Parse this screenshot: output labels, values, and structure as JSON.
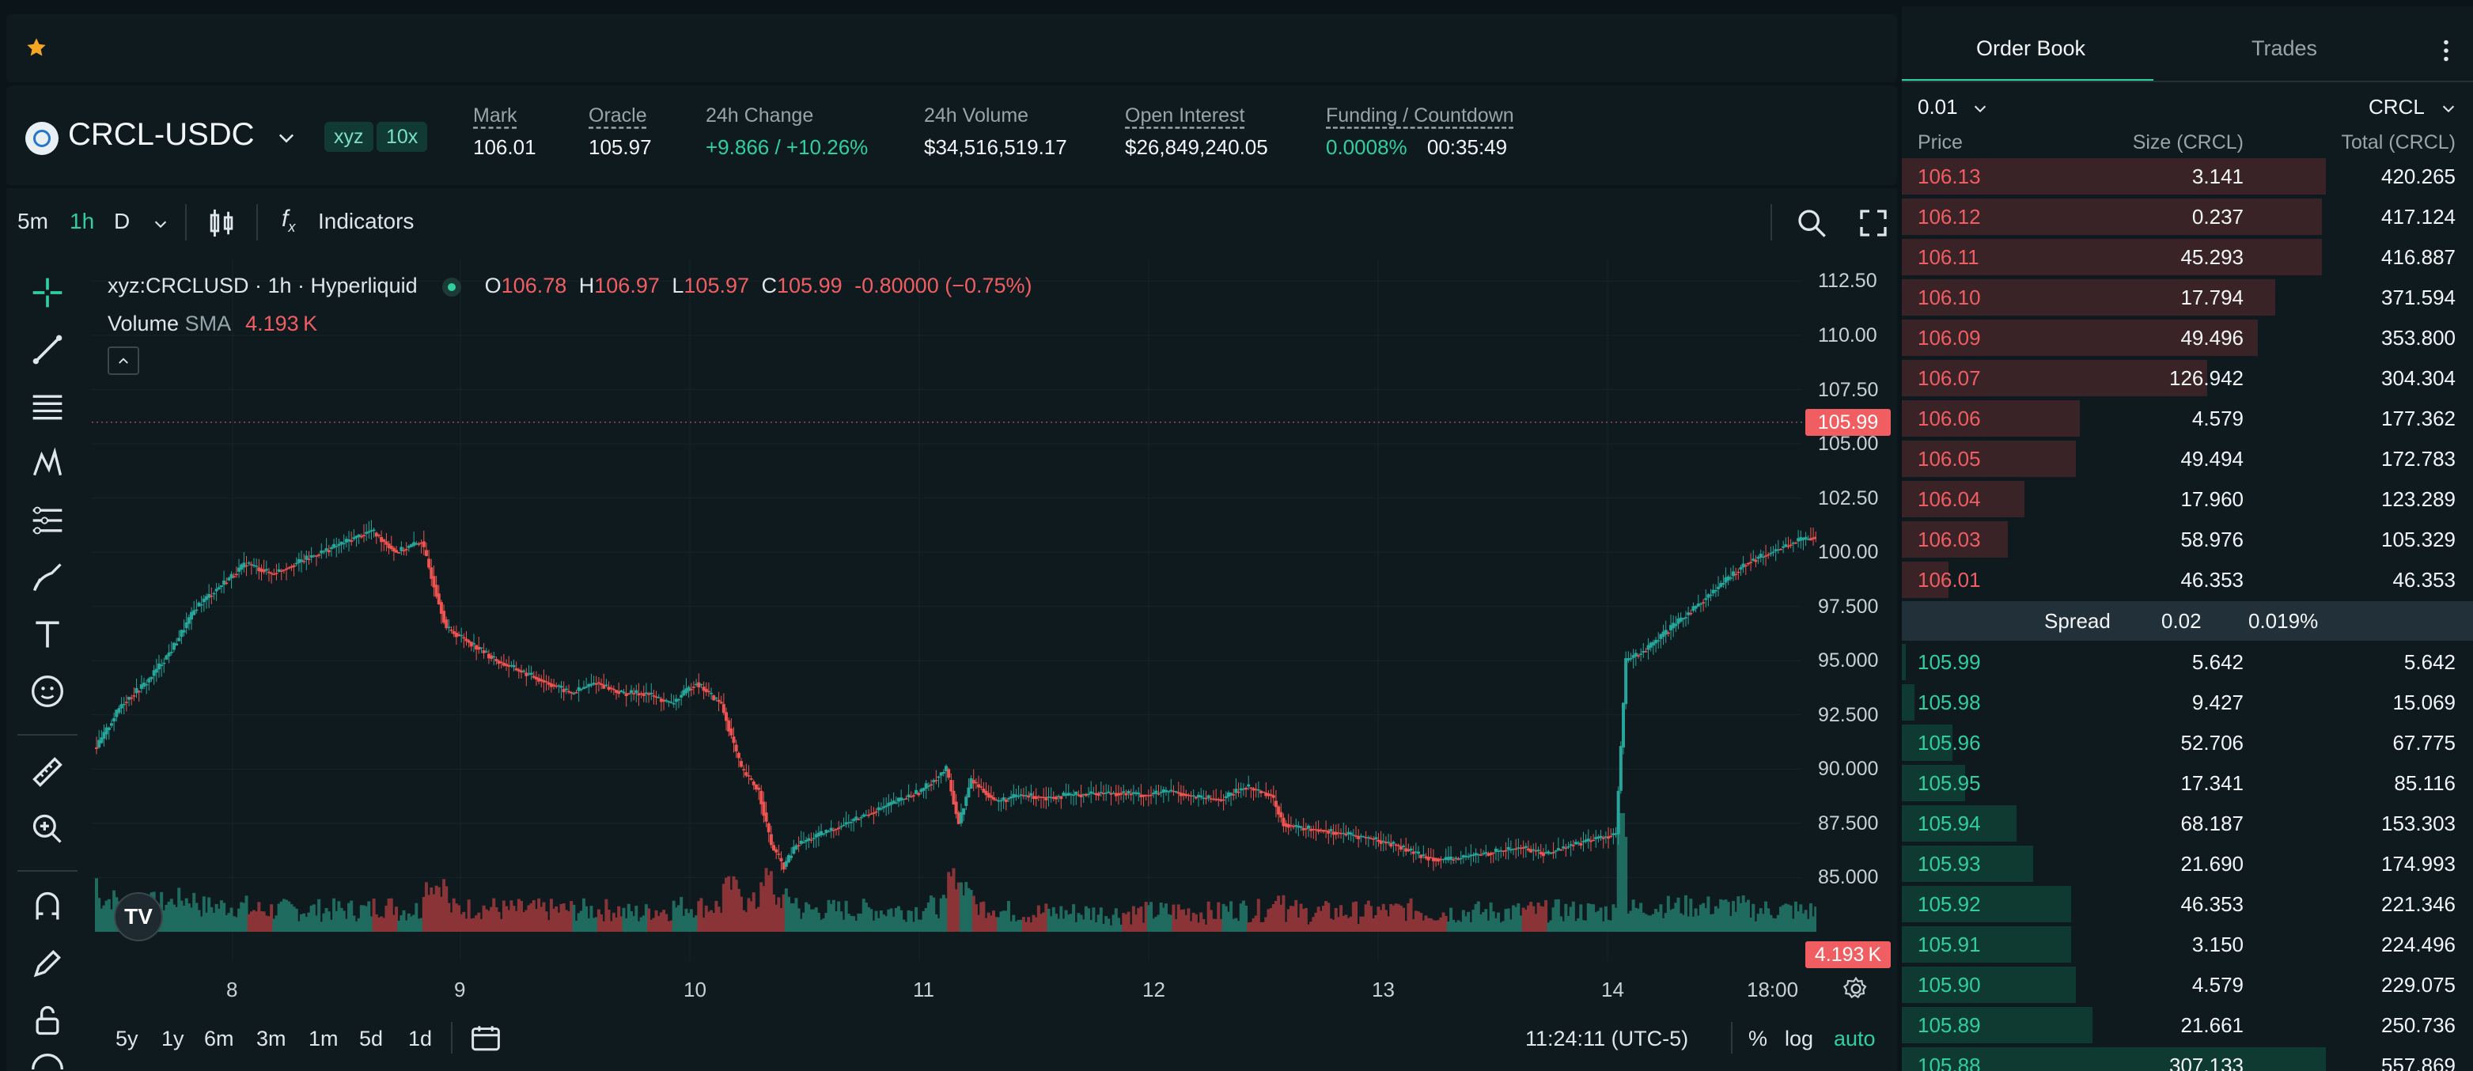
{
  "favorites": {
    "star_icon": "star-icon"
  },
  "header": {
    "pair": "CRCL-USDC",
    "dex_chip": "xyz",
    "leverage_chip": "10x",
    "stats": {
      "mark_label": "Mark",
      "mark_value": "106.01",
      "oracle_label": "Oracle",
      "oracle_value": "105.97",
      "change_label": "24h Change",
      "change_value": "+9.866 / +10.26%",
      "volume_label": "24h Volume",
      "volume_value": "$34,516,519.17",
      "oi_label": "Open Interest",
      "oi_value": "$26,849,240.05",
      "funding_label": "Funding / Countdown",
      "funding_value": "0.0008%",
      "countdown_value": "00:35:49"
    }
  },
  "toolbar": {
    "intervals": [
      "5m",
      "1h",
      "D"
    ],
    "active_interval": "1h",
    "indicators_label": "Indicators"
  },
  "legend": {
    "symbol": "xyz:CRCLUSD · 1h · Hyperliquid",
    "o_label": "O",
    "o_value": "106.78",
    "h_label": "H",
    "h_value": "106.97",
    "l_label": "L",
    "l_value": "105.97",
    "c_label": "C",
    "c_value": "105.99",
    "change": "-0.80000 (−0.75%)",
    "volume_label": "Volume",
    "sma_label": "SMA",
    "sma_value": "4.193 K"
  },
  "chart_data": {
    "type": "candlestick",
    "x_ticks": [
      "8",
      "9",
      "10",
      "11",
      "12",
      "13",
      "14",
      "18:00"
    ],
    "y_ticks": [
      "112.50",
      "110.00",
      "107.50",
      "105.00",
      "102.50",
      "100.00",
      "97.500",
      "95.000",
      "92.500",
      "90.000",
      "87.500",
      "85.000"
    ],
    "ylim": [
      82.5,
      113.5
    ],
    "last_price_label": "105.99",
    "last_volume_label": "4.193 K",
    "up_color": "#26a69a",
    "down_color": "#ef5350"
  },
  "bottom_bar": {
    "ranges": [
      "5y",
      "1y",
      "6m",
      "3m",
      "1m",
      "5d",
      "1d"
    ],
    "time": "11:24:11 (UTC-5)",
    "percent_label": "%",
    "log_label": "log",
    "auto_label": "auto"
  },
  "orderbook": {
    "tab_book": "Order Book",
    "tab_trades": "Trades",
    "tick_size": "0.01",
    "unit": "CRCL",
    "col_price": "Price",
    "col_size": "Size (CRCL)",
    "col_total": "Total (CRCL)",
    "asks": [
      {
        "price": "106.13",
        "size": "3.141",
        "total": "420.265",
        "depth": 1.0
      },
      {
        "price": "106.12",
        "size": "0.237",
        "total": "417.124",
        "depth": 0.99
      },
      {
        "price": "106.11",
        "size": "45.293",
        "total": "416.887",
        "depth": 0.99
      },
      {
        "price": "106.10",
        "size": "17.794",
        "total": "371.594",
        "depth": 0.88
      },
      {
        "price": "106.09",
        "size": "49.496",
        "total": "353.800",
        "depth": 0.84
      },
      {
        "price": "106.07",
        "size": "126.942",
        "total": "304.304",
        "depth": 0.72
      },
      {
        "price": "106.06",
        "size": "4.579",
        "total": "177.362",
        "depth": 0.42
      },
      {
        "price": "106.05",
        "size": "49.494",
        "total": "172.783",
        "depth": 0.41
      },
      {
        "price": "106.04",
        "size": "17.960",
        "total": "123.289",
        "depth": 0.29
      },
      {
        "price": "106.03",
        "size": "58.976",
        "total": "105.329",
        "depth": 0.25
      },
      {
        "price": "106.01",
        "size": "46.353",
        "total": "46.353",
        "depth": 0.11
      }
    ],
    "spread_label": "Spread",
    "spread_value": "0.02",
    "spread_pct": "0.019%",
    "bids": [
      {
        "price": "105.99",
        "size": "5.642",
        "total": "5.642",
        "depth": 0.01
      },
      {
        "price": "105.98",
        "size": "9.427",
        "total": "15.069",
        "depth": 0.03
      },
      {
        "price": "105.96",
        "size": "52.706",
        "total": "67.775",
        "depth": 0.12
      },
      {
        "price": "105.95",
        "size": "17.341",
        "total": "85.116",
        "depth": 0.15
      },
      {
        "price": "105.94",
        "size": "68.187",
        "total": "153.303",
        "depth": 0.27
      },
      {
        "price": "105.93",
        "size": "21.690",
        "total": "174.993",
        "depth": 0.31
      },
      {
        "price": "105.92",
        "size": "46.353",
        "total": "221.346",
        "depth": 0.4
      },
      {
        "price": "105.91",
        "size": "3.150",
        "total": "224.496",
        "depth": 0.4
      },
      {
        "price": "105.90",
        "size": "4.579",
        "total": "229.075",
        "depth": 0.41
      },
      {
        "price": "105.89",
        "size": "21.661",
        "total": "250.736",
        "depth": 0.45
      },
      {
        "price": "105.88",
        "size": "307.133",
        "total": "557.869",
        "depth": 1.0
      }
    ]
  }
}
